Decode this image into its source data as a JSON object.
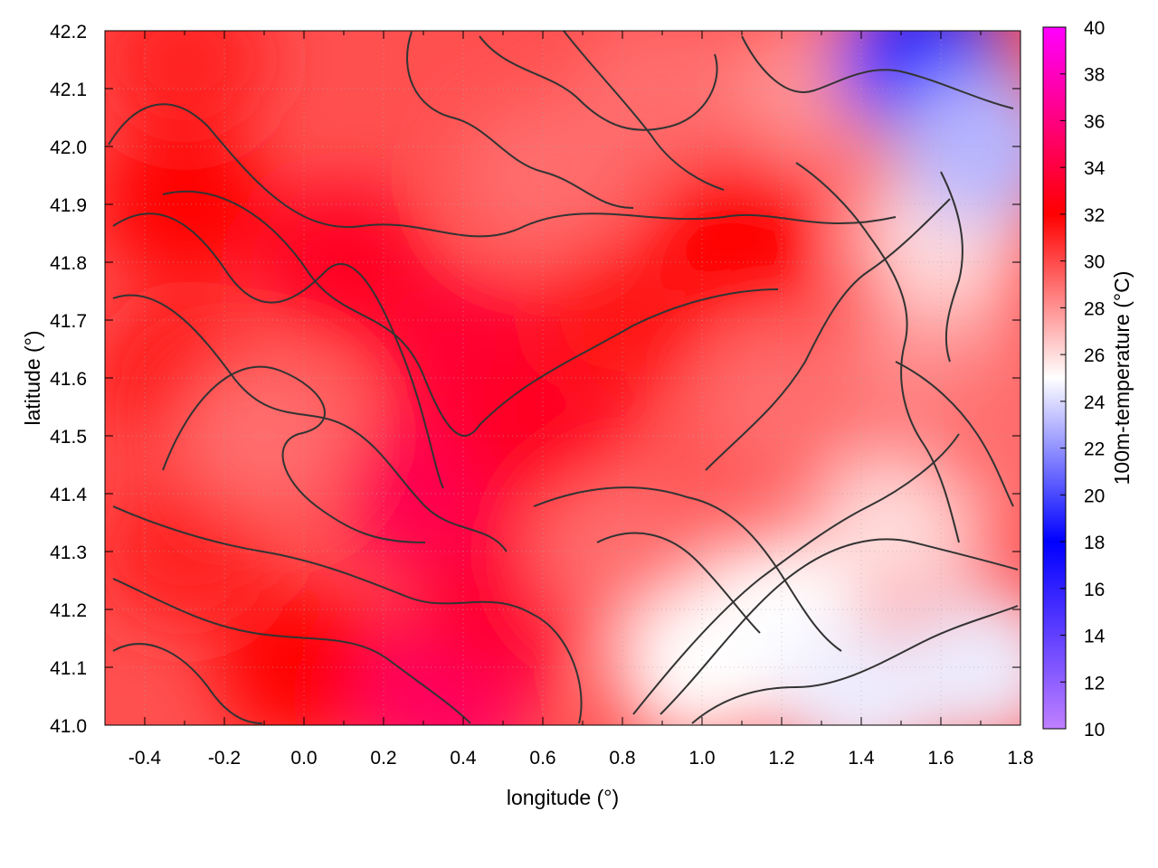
{
  "chart_data": {
    "type": "heatmap",
    "title": "",
    "xlabel": "longitude (°)",
    "ylabel": "latitude (°)",
    "colorbar_label": "100m-temperature (°C)",
    "xlim": [
      -0.5,
      1.8
    ],
    "ylim": [
      41.0,
      42.2
    ],
    "x_ticks": [
      "-0.4",
      "-0.2",
      "0.0",
      "0.2",
      "0.4",
      "0.6",
      "0.8",
      "1.0",
      "1.2",
      "1.4",
      "1.6",
      "1.8"
    ],
    "x_tick_values": [
      -0.4,
      -0.2,
      0.0,
      0.2,
      0.4,
      0.6,
      0.8,
      1.0,
      1.2,
      1.4,
      1.6,
      1.8
    ],
    "y_ticks": [
      "41.0",
      "41.1",
      "41.2",
      "41.3",
      "41.4",
      "41.5",
      "41.6",
      "41.7",
      "41.8",
      "41.9",
      "42.0",
      "42.1",
      "42.2"
    ],
    "y_tick_values": [
      41.0,
      41.1,
      41.2,
      41.3,
      41.4,
      41.5,
      41.6,
      41.7,
      41.8,
      41.9,
      42.0,
      42.1,
      42.2
    ],
    "colorbar_range": [
      10,
      40
    ],
    "colorbar_ticks": [
      "10",
      "12",
      "14",
      "16",
      "18",
      "20",
      "22",
      "24",
      "26",
      "28",
      "30",
      "32",
      "34",
      "36",
      "38",
      "40"
    ],
    "colorbar_tick_values": [
      10,
      12,
      14,
      16,
      18,
      20,
      22,
      24,
      26,
      28,
      30,
      32,
      34,
      36,
      38,
      40
    ],
    "colormap_stops": [
      {
        "value": 10,
        "color": "#c080ff"
      },
      {
        "value": 18,
        "color": "#0000ff"
      },
      {
        "value": 25,
        "color": "#ffffff"
      },
      {
        "value": 32,
        "color": "#ff0000"
      },
      {
        "value": 40,
        "color": "#ff00ff"
      }
    ],
    "grid": true,
    "contours": true,
    "regions": [
      {
        "lon": -0.3,
        "lat": 41.3,
        "value": 31
      },
      {
        "lon": -0.3,
        "lat": 41.6,
        "value": 31.5
      },
      {
        "lon": -0.3,
        "lat": 41.9,
        "value": 32
      },
      {
        "lon": -0.3,
        "lat": 42.15,
        "value": 31
      },
      {
        "lon": -0.1,
        "lat": 41.5,
        "value": 29
      },
      {
        "lon": 0.0,
        "lat": 41.1,
        "value": 32
      },
      {
        "lon": 0.1,
        "lat": 41.8,
        "value": 33
      },
      {
        "lon": 0.3,
        "lat": 41.4,
        "value": 34.5
      },
      {
        "lon": 0.35,
        "lat": 41.05,
        "value": 35
      },
      {
        "lon": 0.4,
        "lat": 41.65,
        "value": 33.5
      },
      {
        "lon": 0.5,
        "lat": 41.2,
        "value": 33.5
      },
      {
        "lon": 0.6,
        "lat": 41.5,
        "value": 33
      },
      {
        "lon": 0.6,
        "lat": 41.95,
        "value": 29
      },
      {
        "lon": 0.8,
        "lat": 41.3,
        "value": 29
      },
      {
        "lon": 0.8,
        "lat": 41.7,
        "value": 31.5
      },
      {
        "lon": 0.9,
        "lat": 42.1,
        "value": 29
      },
      {
        "lon": 1.0,
        "lat": 41.1,
        "value": 25
      },
      {
        "lon": 1.1,
        "lat": 41.85,
        "value": 32
      },
      {
        "lon": 1.2,
        "lat": 41.2,
        "value": 25
      },
      {
        "lon": 1.2,
        "lat": 41.55,
        "value": 29
      },
      {
        "lon": 1.3,
        "lat": 42.1,
        "value": 28
      },
      {
        "lon": 1.4,
        "lat": 41.05,
        "value": 24.5
      },
      {
        "lon": 1.5,
        "lat": 41.35,
        "value": 26
      },
      {
        "lon": 1.55,
        "lat": 42.15,
        "value": 19
      },
      {
        "lon": 1.6,
        "lat": 41.65,
        "value": 28
      },
      {
        "lon": 1.6,
        "lat": 41.85,
        "value": 26
      },
      {
        "lon": 1.7,
        "lat": 41.1,
        "value": 24.5
      },
      {
        "lon": 1.7,
        "lat": 42.0,
        "value": 23
      },
      {
        "lon": 1.75,
        "lat": 41.5,
        "value": 29
      }
    ]
  }
}
